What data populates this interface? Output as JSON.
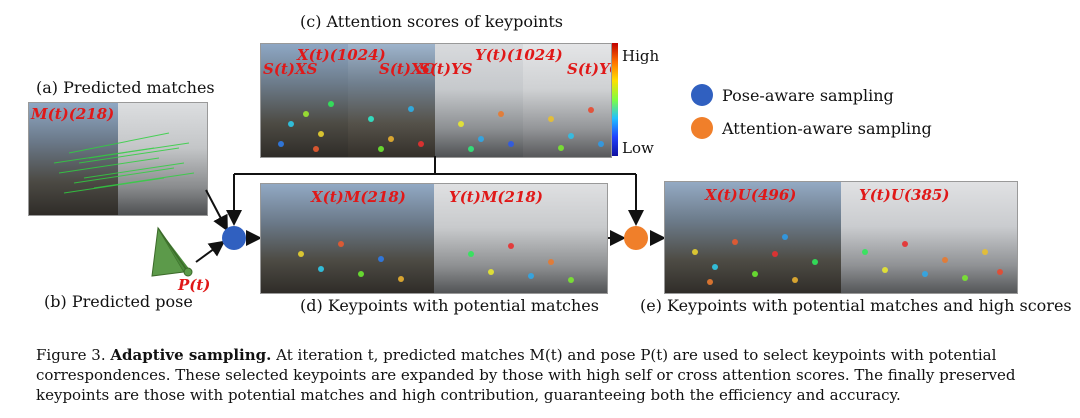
{
  "panel_a": {
    "label": "(a) Predicted matches",
    "overlay": "M(t)(218)"
  },
  "panel_b": {
    "label": "(b) Predicted pose",
    "overlay": "P(t)"
  },
  "panel_c": {
    "label": "(c) Attention scores of keypoints",
    "overlay_x": "X(t)(1024)",
    "overlay_y": "Y(t)(1024)",
    "s_xs": "S(t)XS",
    "s_xc": "S(t)XC",
    "s_ys": "S(t)YS",
    "s_yc": "S(t)YC",
    "colorbar_high": "High",
    "colorbar_low": "Low"
  },
  "panel_d": {
    "label": "(d) Keypoints with potential matches",
    "overlay_x": "X(t)M(218)",
    "overlay_y": "Y(t)M(218)"
  },
  "panel_e": {
    "label": "(e) Keypoints with potential matches and high scores",
    "overlay_x": "X(t)U(496)",
    "overlay_y": "Y(t)U(385)"
  },
  "legend": {
    "pose": "Pose-aware sampling",
    "attention": "Attention-aware sampling",
    "pose_color": "#3060c0",
    "attention_color": "#f07f2a"
  },
  "caption": {
    "prefix": "Figure 3.",
    "bold": "Adaptive sampling.",
    "text": "At iteration t, predicted matches M(t) and pose P(t) are used to select keypoints with potential correspondences. These selected keypoints are expanded by those with high self or cross attention scores. The finally preserved keypoints are those with potential matches and high contribution, guaranteeing both the efficiency and accuracy."
  }
}
